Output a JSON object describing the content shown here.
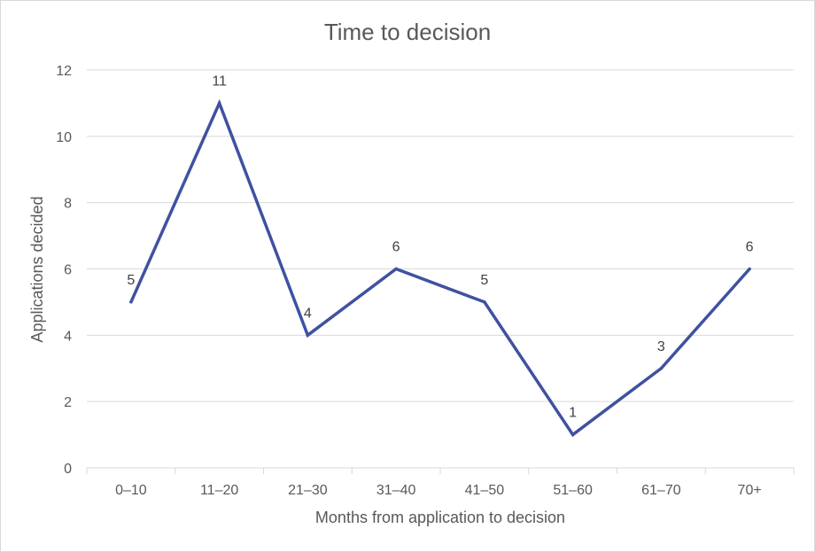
{
  "chart_data": {
    "type": "line",
    "title": "Time to decision",
    "xlabel": "Months from application to decision",
    "ylabel": "Applications decided",
    "categories": [
      "0–10",
      "11–20",
      "21–30",
      "31–40",
      "41–50",
      "51–60",
      "61–70",
      "70+"
    ],
    "series": [
      {
        "values": [
          5,
          11,
          4,
          6,
          5,
          1,
          3,
          6
        ]
      }
    ],
    "ylim": [
      0,
      12
    ],
    "yticks": [
      "0",
      "2",
      "4",
      "6",
      "8",
      "10",
      "12"
    ],
    "grid": "horizontal",
    "data_labels": true,
    "legend": "none",
    "line_color": "#3f51a0",
    "grid_color": "#d9d9d9",
    "text_color": "#595959"
  }
}
